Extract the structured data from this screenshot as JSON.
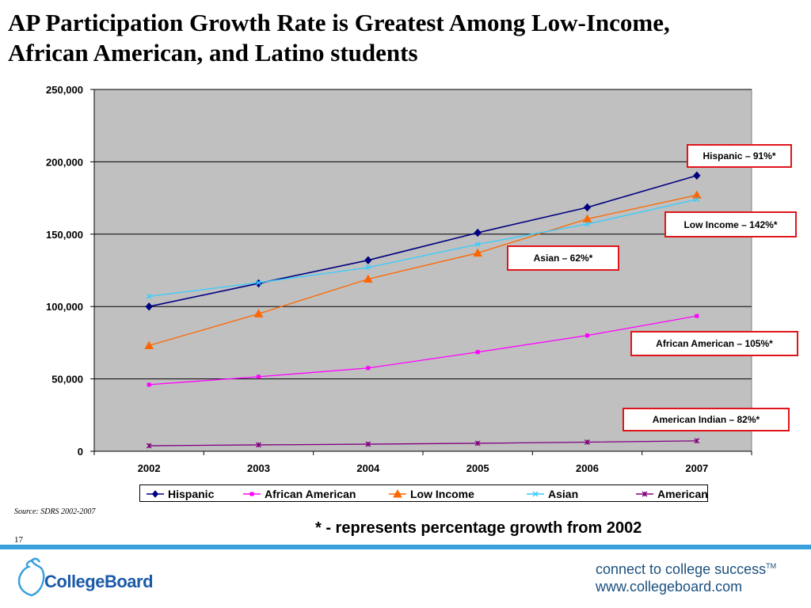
{
  "slide": {
    "title_line1": "AP Participation Growth Rate is Greatest Among Low-Income,",
    "title_line2": "African American, and Latino students",
    "source": "Source: SDRS 2002-2007",
    "slide_number": "17",
    "footnote": "* - represents percentage growth from 2002",
    "brand_name": "CollegeBoard",
    "tagline_line1": "connect to college success",
    "tagline_tm": "TM",
    "tagline_line2": "www.collegeboard.com"
  },
  "colors": {
    "plot_background": "#c0c0c0",
    "callout_border": "#e0151b",
    "rule": "#3aa0dc",
    "brand": "#1a5aa8"
  },
  "callouts": [
    {
      "label": "Hispanic – 91%*"
    },
    {
      "label": "Low Income – 142%*"
    },
    {
      "label": "Asian – 62%*"
    },
    {
      "label": "African American – 105%*"
    },
    {
      "label": "American Indian – 82%*"
    }
  ],
  "chart_data": {
    "type": "line",
    "title": "",
    "xlabel": "",
    "ylabel": "",
    "x": [
      "2002",
      "2003",
      "2004",
      "2005",
      "2006",
      "2007"
    ],
    "ylim": [
      0,
      250000
    ],
    "yticks": [
      0,
      50000,
      100000,
      150000,
      200000,
      250000
    ],
    "ytick_labels": [
      "0",
      "50,000",
      "100,000",
      "150,000",
      "200,000",
      "250,000"
    ],
    "grid": true,
    "legend_position": "bottom",
    "series": [
      {
        "name": "Hispanic",
        "color": "#000080",
        "marker": "diamond",
        "values": [
          100000,
          116000,
          132000,
          151000,
          168500,
          190500
        ]
      },
      {
        "name": "African American",
        "color": "#ff00ff",
        "marker": "square",
        "values": [
          46000,
          51500,
          57500,
          68500,
          80000,
          93500
        ]
      },
      {
        "name": "Low Income",
        "color": "#ff6600",
        "marker": "triangle",
        "values": [
          73000,
          95000,
          119000,
          137000,
          160500,
          177000
        ]
      },
      {
        "name": "Asian",
        "color": "#33ccff",
        "marker": "x",
        "values": [
          107000,
          116500,
          127000,
          143000,
          157000,
          174000
        ]
      },
      {
        "name": "American Indian",
        "color": "#800080",
        "marker": "star",
        "values": [
          3800,
          4400,
          4900,
          5500,
          6300,
          7200
        ]
      }
    ]
  }
}
